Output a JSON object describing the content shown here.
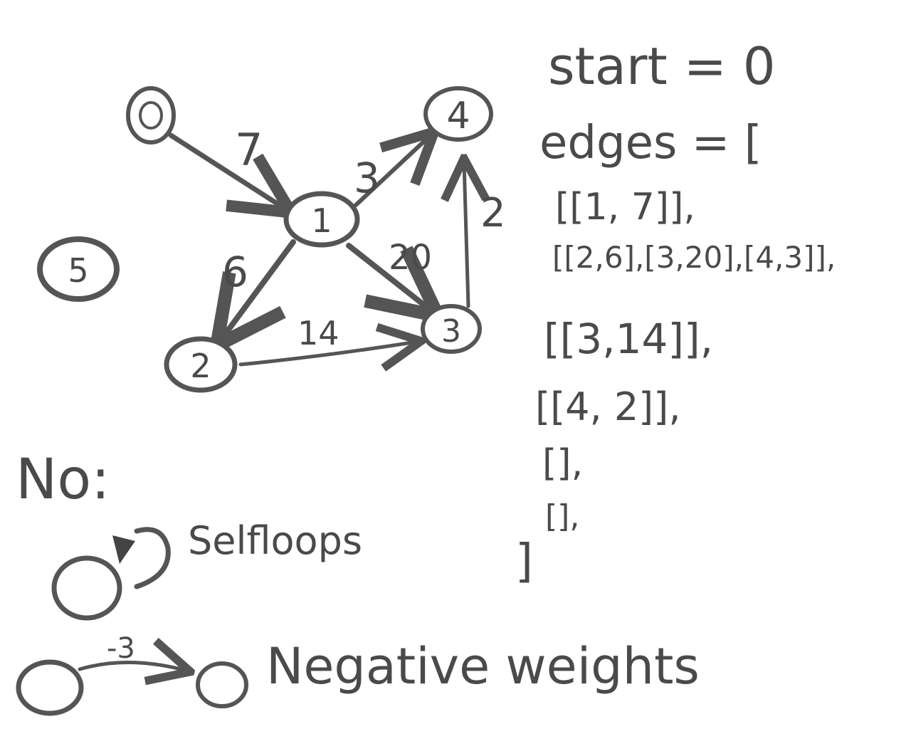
{
  "graph": {
    "nodes": [
      {
        "id": "0",
        "label": "0"
      },
      {
        "id": "1",
        "label": "1"
      },
      {
        "id": "2",
        "label": "2"
      },
      {
        "id": "3",
        "label": "3"
      },
      {
        "id": "4",
        "label": "4"
      },
      {
        "id": "5",
        "label": "5"
      }
    ],
    "edges": [
      {
        "from": "0",
        "to": "1",
        "weight": "7"
      },
      {
        "from": "1",
        "to": "4",
        "weight": "3"
      },
      {
        "from": "1",
        "to": "2",
        "weight": "6"
      },
      {
        "from": "1",
        "to": "3",
        "weight": "20"
      },
      {
        "from": "2",
        "to": "3",
        "weight": "14"
      },
      {
        "from": "3",
        "to": "4",
        "weight": "2"
      }
    ]
  },
  "code": {
    "start_line": "start = 0",
    "edges_open": "edges = [",
    "rows": [
      "[[1, 7]],",
      "[[2,6],[3,20],[4,3]],",
      "[[3,14]],",
      "[[4, 2]],",
      "[],",
      "[],"
    ],
    "edges_close": "]"
  },
  "notes": {
    "heading": "No:",
    "selfloops": "Selfloops",
    "negative_label": "-3",
    "negative": "Negative weights"
  }
}
